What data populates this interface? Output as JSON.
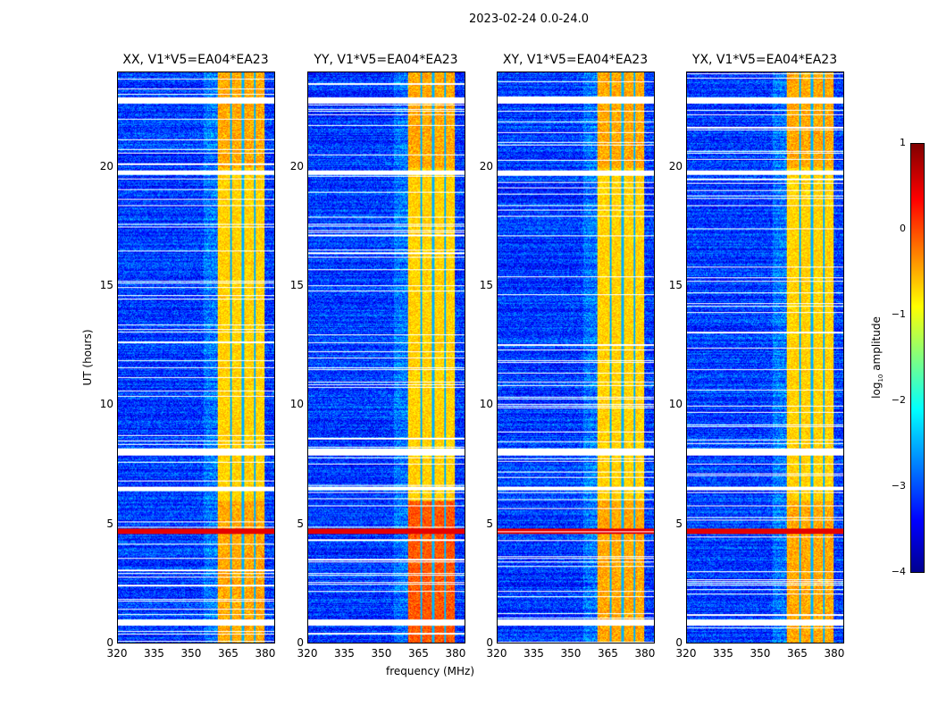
{
  "chart_data": {
    "type": "heatmap",
    "title": "2023-02-24 0.0-24.0",
    "xlabel": "frequency (MHz)",
    "ylabel": "UT (hours)",
    "xlim": [
      320,
      384
    ],
    "ylim": [
      0,
      24
    ],
    "xticks": [
      320,
      335,
      350,
      365,
      380
    ],
    "yticks": [
      0,
      5,
      10,
      15,
      20
    ],
    "panels": [
      {
        "title": "XX, V1*V5=EA04*EA23",
        "seed": 1
      },
      {
        "title": "YY, V1*V5=EA04*EA23",
        "seed": 2
      },
      {
        "title": "XY, V1*V5=EA04*EA23",
        "seed": 3
      },
      {
        "title": "YX, V1*V5=EA04*EA23",
        "seed": 4
      }
    ],
    "rfi_band_mhz": [
      360.5,
      380
    ],
    "rfi_gaps_mhz": [
      366,
      371,
      376
    ],
    "flagged_hours": [
      [
        0.75,
        1.0
      ],
      [
        6.45,
        6.6
      ],
      [
        7.9,
        8.2
      ],
      [
        19.7,
        19.9
      ],
      [
        22.7,
        22.95
      ]
    ],
    "bright_rfi_hours": [
      [
        4.6,
        4.8
      ]
    ],
    "colorbar": {
      "label": "log10 amplitude",
      "label_main": "log",
      "label_sub": "10",
      "label_end": " amplitude",
      "range": [
        -4,
        1
      ],
      "ticks": [
        "1",
        "0",
        "−1",
        "−2",
        "−3",
        "−4"
      ],
      "colormap": "jet"
    }
  }
}
